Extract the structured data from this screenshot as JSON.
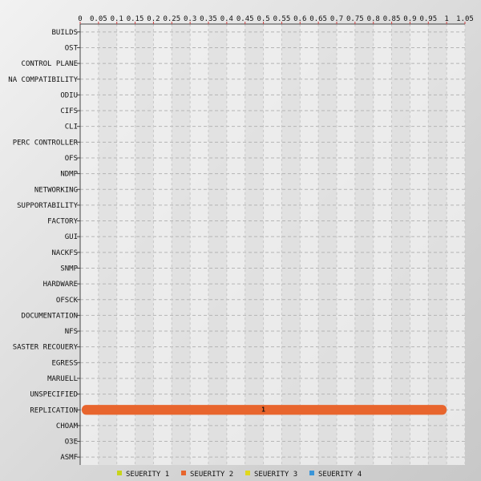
{
  "chart_data": {
    "type": "bar",
    "orientation": "horizontal",
    "title": "",
    "xlabel": "",
    "ylabel": "",
    "xlim": [
      0,
      1.05
    ],
    "x_ticks": [
      "0",
      "0.05",
      "0.1",
      "0.15",
      "0.2",
      "0.25",
      "0.3",
      "0.35",
      "0.4",
      "0.45",
      "0.5",
      "0.55",
      "0.6",
      "0.65",
      "0.7",
      "0.75",
      "0.8",
      "0.85",
      "0.9",
      "0.95",
      "1",
      "1.05"
    ],
    "x_tick_values": [
      0,
      0.05,
      0.1,
      0.15,
      0.2,
      0.25,
      0.3,
      0.35,
      0.4,
      0.45,
      0.5,
      0.55,
      0.6,
      0.65,
      0.7,
      0.75,
      0.8,
      0.85,
      0.9,
      0.95,
      1,
      1.05
    ],
    "grid": true,
    "legend_position": "bottom",
    "categories": [
      "BUILDS",
      "OST",
      "CONTROL PLANE",
      "NA COMPATIBILITY",
      "ODIU",
      "CIFS",
      "CLI",
      "PERC CONTROLLER",
      "OFS",
      "NDMP",
      "NETWORKING",
      "SUPPORTABILITY",
      "FACTORY",
      "GUI",
      "NACKFS",
      "SNMP",
      "HARDWARE",
      "OFSCK",
      "DOCUMENTATION",
      "NFS",
      "SASTER RECOUERY",
      "EGRESS",
      "MARUELL",
      "UNSPECIFIED",
      "REPLICATION",
      "CHOAM",
      "O3E",
      "ASMF"
    ],
    "series": [
      {
        "name": "SEUERITY 1",
        "color": "#c8d41a",
        "values": [
          0,
          0,
          0,
          0,
          0,
          0,
          0,
          0,
          0,
          0,
          0,
          0,
          0,
          0,
          0,
          0,
          0,
          0,
          0,
          0,
          0,
          0,
          0,
          0,
          0,
          0,
          0,
          0
        ]
      },
      {
        "name": "SEUERITY 2",
        "color": "#e8652d",
        "values": [
          0,
          0,
          0,
          0,
          0,
          0,
          0,
          0,
          0,
          0,
          0,
          0,
          0,
          0,
          0,
          0,
          0,
          0,
          0,
          0,
          0,
          0,
          0,
          0,
          1,
          0,
          0,
          0
        ]
      },
      {
        "name": "SEUERITY 3",
        "color": "#e0d81c",
        "values": [
          0,
          0,
          0,
          0,
          0,
          0,
          0,
          0,
          0,
          0,
          0,
          0,
          0,
          0,
          0,
          0,
          0,
          0,
          0,
          0,
          0,
          0,
          0,
          0,
          0,
          0,
          0,
          0
        ]
      },
      {
        "name": "SEUERITY 4",
        "color": "#3a95d8",
        "values": [
          0,
          0,
          0,
          0,
          0,
          0,
          0,
          0,
          0,
          0,
          0,
          0,
          0,
          0,
          0,
          0,
          0,
          0,
          0,
          0,
          0,
          0,
          0,
          0,
          0,
          0,
          0,
          0
        ]
      }
    ],
    "data_labels": [
      {
        "category": "REPLICATION",
        "text": "1"
      }
    ]
  }
}
